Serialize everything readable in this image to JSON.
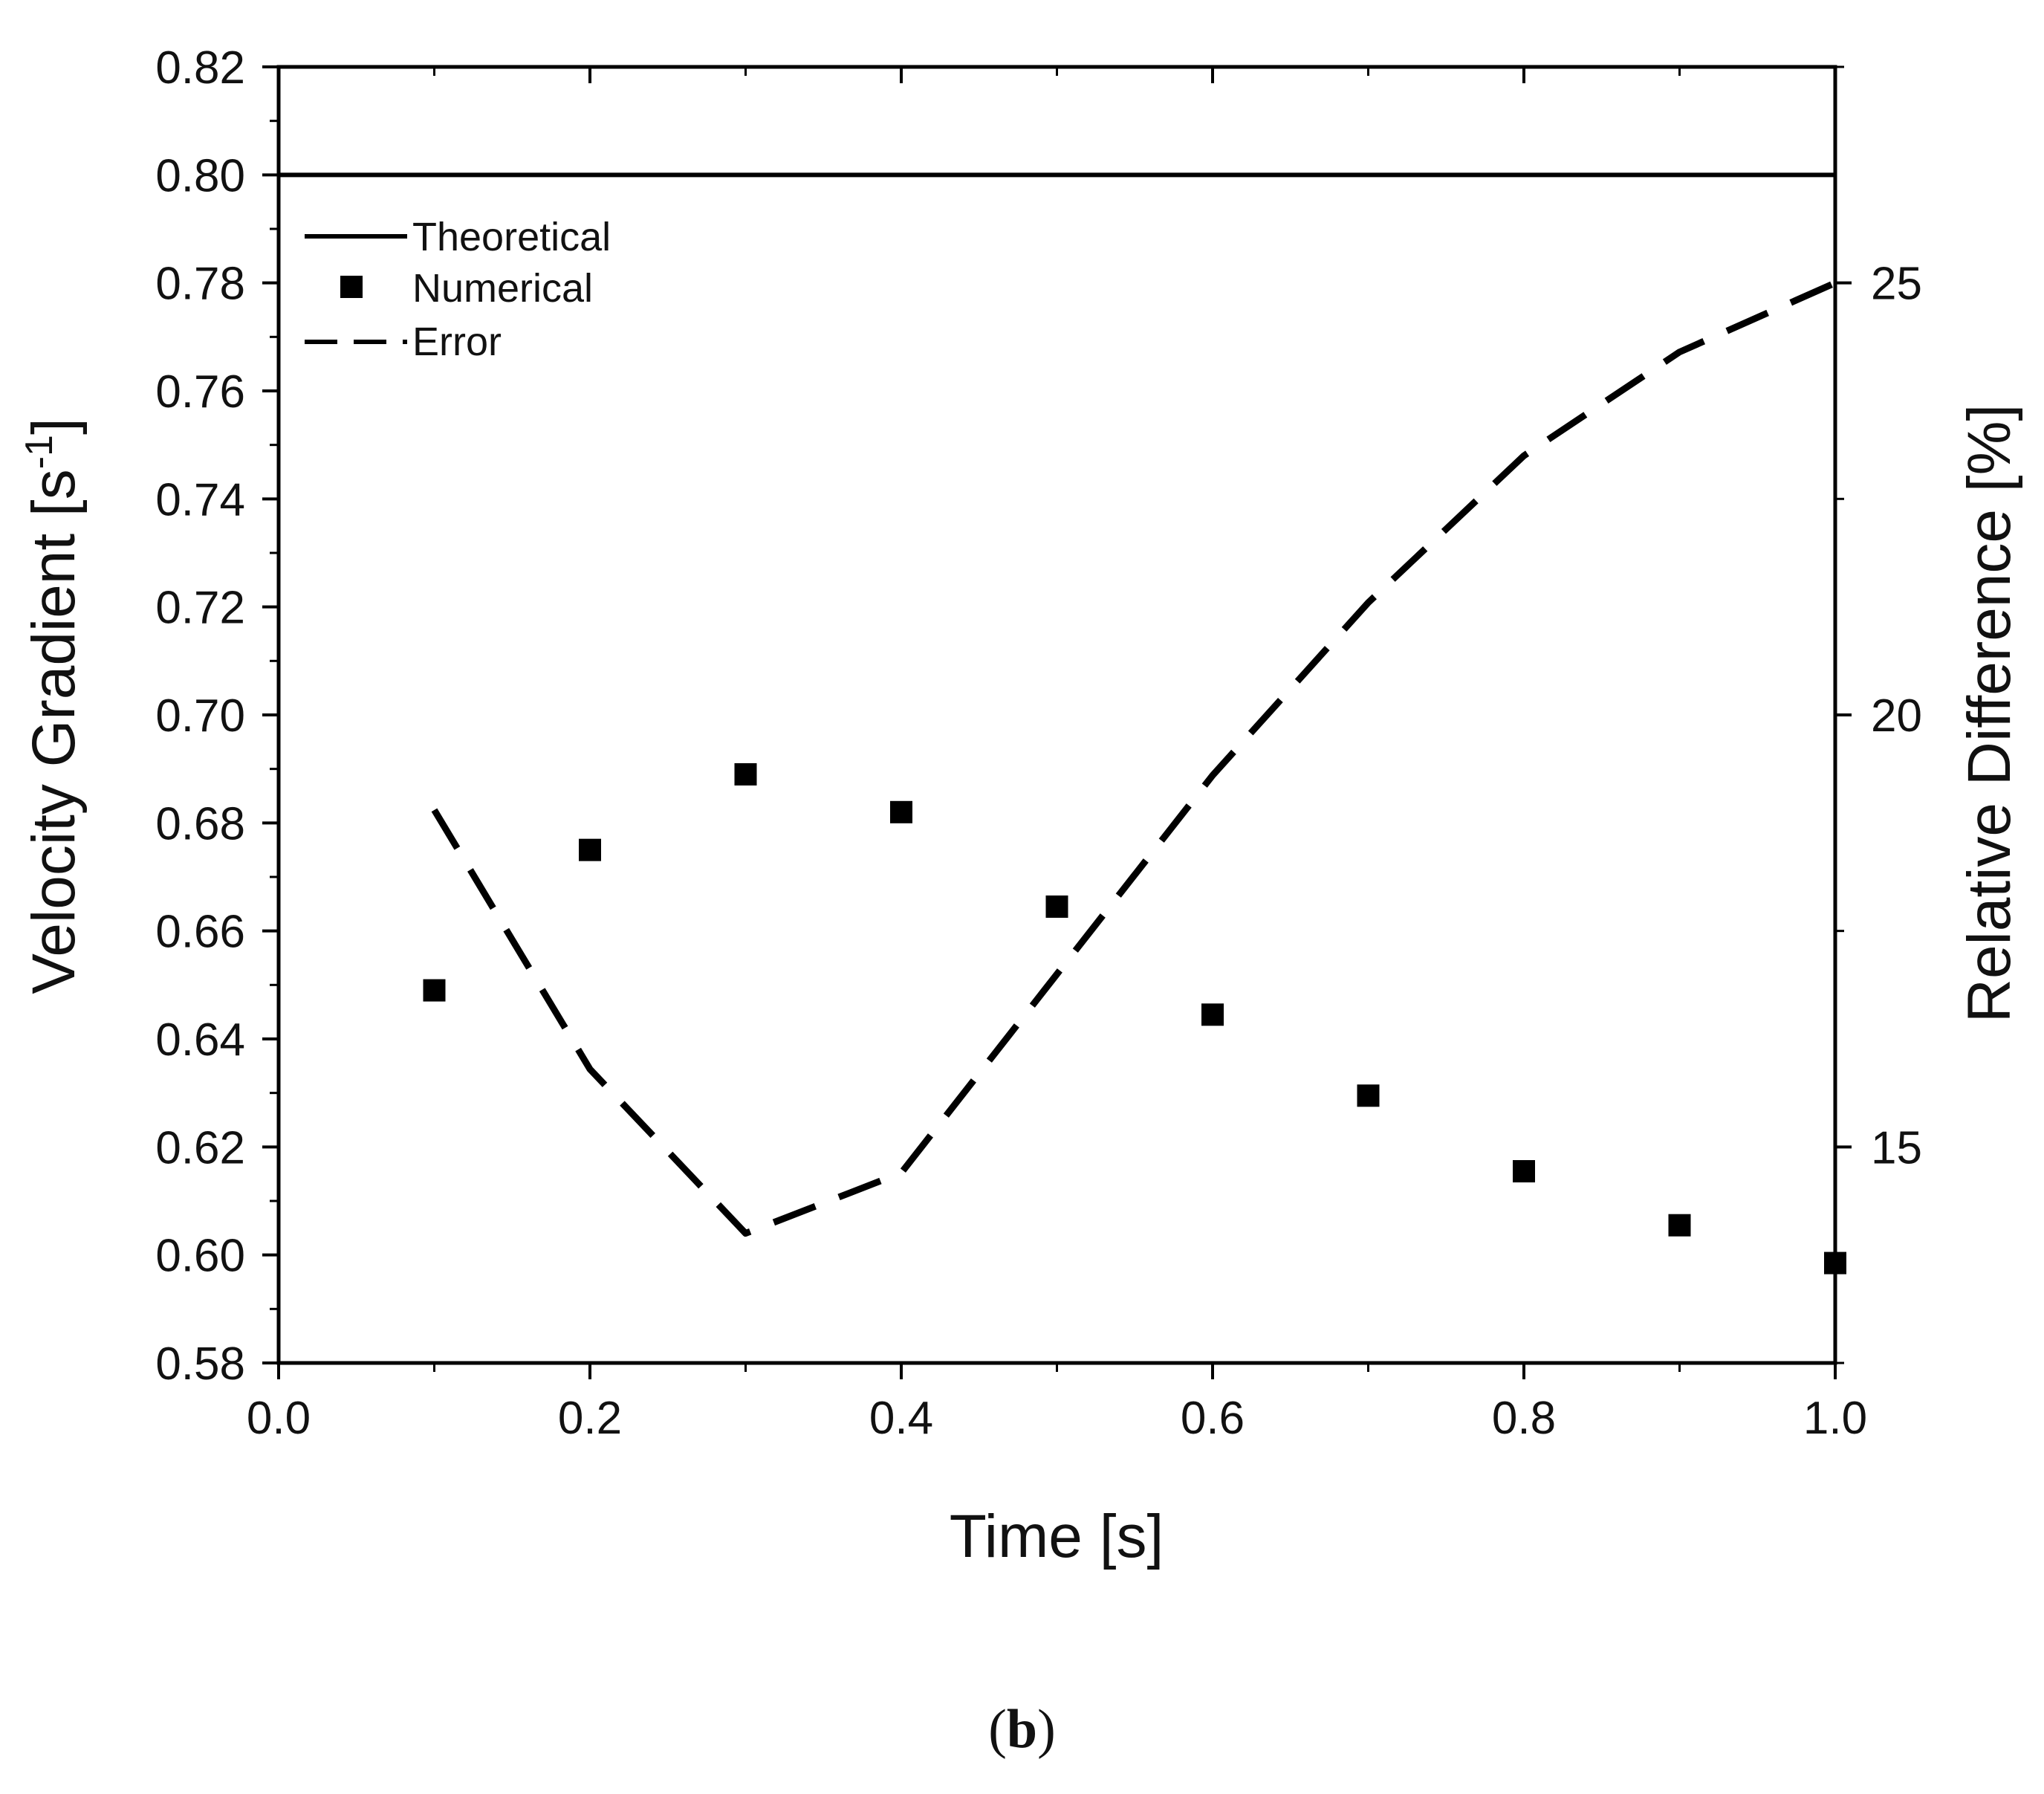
{
  "chart_data": {
    "type": "line",
    "x": [
      0.1,
      0.2,
      0.3,
      0.4,
      0.5,
      0.6,
      0.7,
      0.8,
      0.9,
      1.0
    ],
    "xlabel": "Time [s]",
    "xlim": [
      0.0,
      1.0
    ],
    "xticks": [
      "0.0",
      "0.2",
      "0.4",
      "0.6",
      "0.8",
      "1.0"
    ],
    "ylabel": "Velocity Gradient [s",
    "ylabel_sup": "-1",
    "ylabel_end": "]",
    "ylim": [
      0.58,
      0.82
    ],
    "yticks": [
      "0.58",
      "0.60",
      "0.62",
      "0.64",
      "0.66",
      "0.68",
      "0.70",
      "0.72",
      "0.74",
      "0.76",
      "0.78",
      "0.80",
      "0.82"
    ],
    "y2label": "Relative Difference [%]",
    "y2lim": [
      12.5,
      27.5
    ],
    "y2ticks": [
      "15",
      "20",
      "25"
    ],
    "series": [
      {
        "name": "Theoretical",
        "style": "solid-line",
        "axis": "left",
        "values": [
          0.8,
          0.8,
          0.8,
          0.8,
          0.8,
          0.8,
          0.8,
          0.8,
          0.8,
          0.8
        ]
      },
      {
        "name": "Numerical",
        "style": "square-markers",
        "axis": "left",
        "values": [
          0.649,
          0.675,
          0.689,
          0.682,
          0.6645,
          0.6445,
          0.6295,
          0.6155,
          0.6055,
          0.5985
        ]
      },
      {
        "name": "Error",
        "style": "dashed-line",
        "axis": "right",
        "values": [
          18.9,
          15.9,
          14.0,
          14.7,
          17.0,
          19.3,
          21.3,
          23.0,
          24.2,
          25.0
        ]
      }
    ],
    "legend_position": "top-left",
    "colors": {
      "line": "#000000",
      "background": "#ffffff"
    }
  },
  "caption": {
    "open": "(",
    "label": "b",
    "close": ")"
  }
}
